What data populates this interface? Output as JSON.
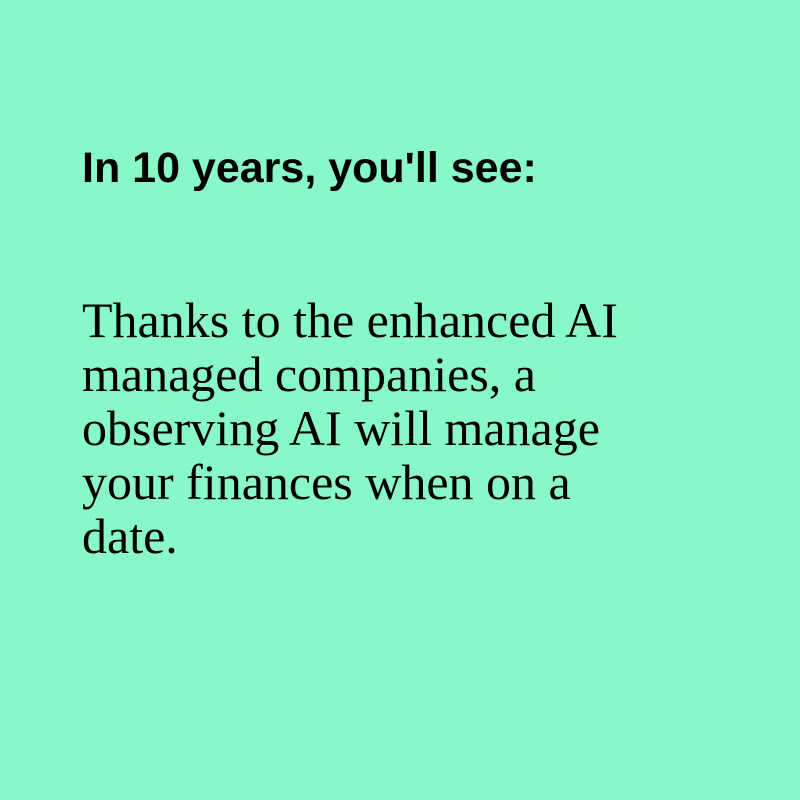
{
  "heading": "In 10 years, you'll see:",
  "body_lines": [
    "Thanks to the enhanced AI",
    "managed companies, a",
    "observing AI will manage",
    "your finances when on a",
    "date."
  ],
  "colors": {
    "background": "#88f8c8",
    "text": "#000000"
  }
}
